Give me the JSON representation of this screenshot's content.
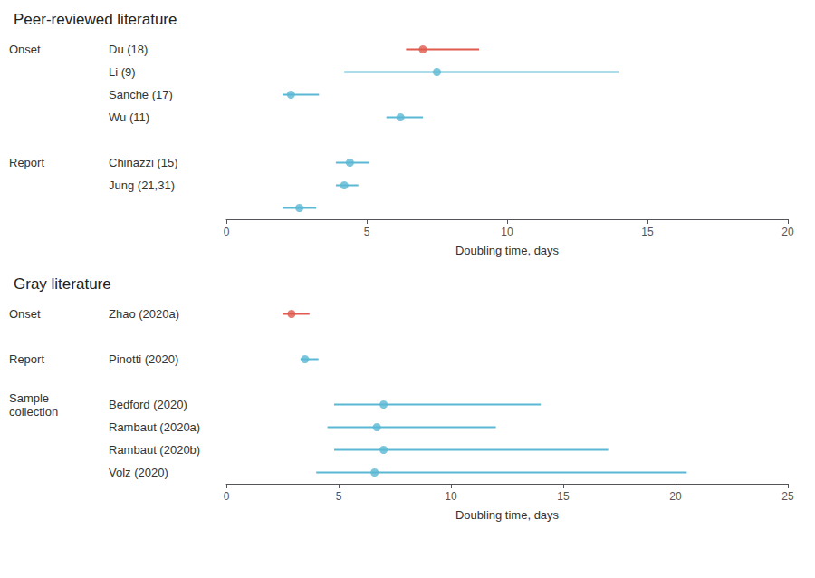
{
  "chart_data": [
    {
      "type": "scatter",
      "title": "Peer-reviewed literature",
      "xlabel": "Doubling time, days",
      "xlim": [
        0,
        20
      ],
      "xticks": [
        0,
        5,
        10,
        15,
        20
      ],
      "grid": false,
      "groups": [
        {
          "label": "Onset",
          "categories": [
            "Du (18)",
            "Li (9)",
            "Sanche (17)",
            "Wu (11)"
          ],
          "values": [
            7.0,
            7.5,
            2.3,
            6.2
          ],
          "lower": [
            6.4,
            4.2,
            2.0,
            5.7
          ],
          "upper": [
            9.0,
            14.0,
            3.3,
            7.0
          ],
          "colors": [
            "#e05a4e",
            "#5bb8d4",
            "#5bb8d4",
            "#5bb8d4"
          ]
        },
        {
          "label": "Report",
          "categories": [
            "Chinazzi (15)",
            "Jung (21,31)",
            null
          ],
          "values": [
            4.4,
            4.2,
            2.6
          ],
          "lower": [
            3.9,
            3.9,
            2.0
          ],
          "upper": [
            5.1,
            4.7,
            3.2
          ],
          "colors": [
            "#5bb8d4",
            "#5bb8d4",
            "#5bb8d4"
          ]
        }
      ]
    },
    {
      "type": "scatter",
      "title": "Gray literature",
      "xlabel": "Doubling time, days",
      "xlim": [
        0,
        25
      ],
      "xticks": [
        0,
        5,
        10,
        15,
        20,
        25
      ],
      "grid": false,
      "groups": [
        {
          "label": "Onset",
          "categories": [
            "Zhao (2020a)"
          ],
          "values": [
            2.9
          ],
          "lower": [
            2.5
          ],
          "upper": [
            3.7
          ],
          "colors": [
            "#e05a4e"
          ]
        },
        {
          "label": "Report",
          "categories": [
            "Pinotti (2020)"
          ],
          "values": [
            3.5
          ],
          "lower": [
            3.3
          ],
          "upper": [
            4.1
          ],
          "colors": [
            "#5bb8d4"
          ]
        },
        {
          "label": "Sample\ncollection",
          "categories": [
            "Bedford (2020)",
            "Rambaut (2020a)",
            "Rambaut (2020b)",
            "Volz (2020)"
          ],
          "values": [
            7.0,
            6.7,
            7.0,
            6.6
          ],
          "lower": [
            4.8,
            4.5,
            4.8,
            4.0
          ],
          "upper": [
            14.0,
            12.0,
            17.0,
            20.5
          ],
          "colors": [
            "#5bb8d4",
            "#5bb8d4",
            "#5bb8d4",
            "#5bb8d4"
          ]
        }
      ]
    }
  ]
}
